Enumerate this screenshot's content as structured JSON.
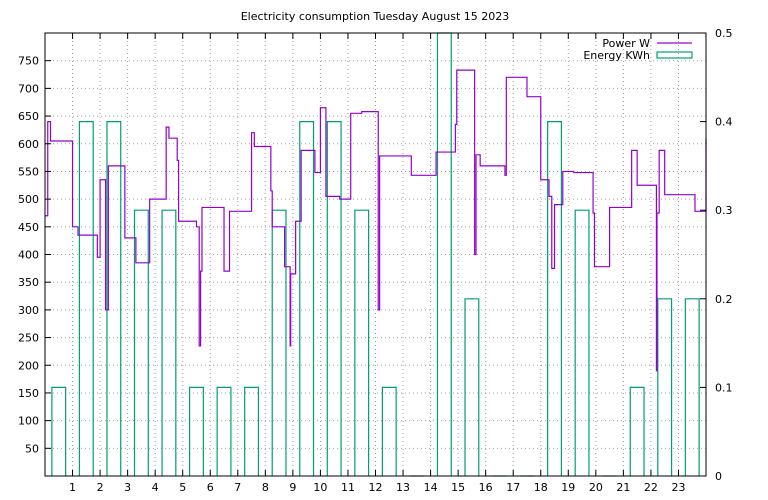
{
  "chart_data": {
    "type": "line",
    "title": "Electricity consumption Tuesday August 15 2023",
    "xlabel": "",
    "ylabel": "",
    "y2label": "",
    "xlim": [
      0,
      24
    ],
    "ylim": [
      0,
      800
    ],
    "y2lim": [
      0,
      0.5
    ],
    "grid": true,
    "legend_position": "top-right",
    "x_ticks": [
      1,
      2,
      3,
      4,
      5,
      6,
      7,
      8,
      9,
      10,
      11,
      12,
      13,
      14,
      15,
      16,
      17,
      18,
      19,
      20,
      21,
      22,
      23
    ],
    "y_ticks": [
      50,
      100,
      150,
      200,
      250,
      300,
      350,
      400,
      450,
      500,
      550,
      600,
      650,
      700,
      750
    ],
    "y2_ticks": [
      0,
      0.1,
      0.2,
      0.3,
      0.4,
      0.5
    ],
    "series": [
      {
        "name": "Power W",
        "color": "#9400d3",
        "axis": "y",
        "style": "step",
        "points": [
          [
            0.0,
            470
          ],
          [
            0.1,
            470
          ],
          [
            0.1,
            640
          ],
          [
            0.2,
            640
          ],
          [
            0.2,
            605
          ],
          [
            1.0,
            605
          ],
          [
            1.0,
            450
          ],
          [
            1.2,
            450
          ],
          [
            1.2,
            435
          ],
          [
            1.9,
            435
          ],
          [
            1.9,
            395
          ],
          [
            2.0,
            395
          ],
          [
            2.0,
            535
          ],
          [
            2.2,
            535
          ],
          [
            2.2,
            300
          ],
          [
            2.3,
            300
          ],
          [
            2.3,
            560
          ],
          [
            2.9,
            560
          ],
          [
            2.9,
            430
          ],
          [
            3.3,
            430
          ],
          [
            3.3,
            385
          ],
          [
            3.8,
            385
          ],
          [
            3.8,
            500
          ],
          [
            4.4,
            500
          ],
          [
            4.4,
            630
          ],
          [
            4.5,
            630
          ],
          [
            4.5,
            610
          ],
          [
            4.8,
            610
          ],
          [
            4.8,
            570
          ],
          [
            4.85,
            570
          ],
          [
            4.85,
            460
          ],
          [
            5.5,
            460
          ],
          [
            5.5,
            450
          ],
          [
            5.6,
            450
          ],
          [
            5.6,
            235
          ],
          [
            5.65,
            235
          ],
          [
            5.65,
            370
          ],
          [
            5.7,
            370
          ],
          [
            5.7,
            485
          ],
          [
            6.5,
            485
          ],
          [
            6.5,
            370
          ],
          [
            6.7,
            370
          ],
          [
            6.7,
            478
          ],
          [
            7.5,
            478
          ],
          [
            7.5,
            620
          ],
          [
            7.6,
            620
          ],
          [
            7.6,
            595
          ],
          [
            8.2,
            595
          ],
          [
            8.2,
            515
          ],
          [
            8.25,
            515
          ],
          [
            8.25,
            450
          ],
          [
            8.7,
            450
          ],
          [
            8.7,
            378
          ],
          [
            8.9,
            378
          ],
          [
            8.9,
            235
          ],
          [
            8.92,
            235
          ],
          [
            8.92,
            365
          ],
          [
            9.1,
            365
          ],
          [
            9.1,
            460
          ],
          [
            9.3,
            460
          ],
          [
            9.3,
            588
          ],
          [
            9.8,
            588
          ],
          [
            9.8,
            548
          ],
          [
            10.0,
            548
          ],
          [
            10.0,
            665
          ],
          [
            10.2,
            665
          ],
          [
            10.2,
            505
          ],
          [
            10.7,
            505
          ],
          [
            10.7,
            500
          ],
          [
            11.1,
            500
          ],
          [
            11.1,
            655
          ],
          [
            11.5,
            655
          ],
          [
            11.5,
            658
          ],
          [
            12.1,
            658
          ],
          [
            12.1,
            300
          ],
          [
            12.15,
            300
          ],
          [
            12.15,
            578
          ],
          [
            13.3,
            578
          ],
          [
            13.3,
            543
          ],
          [
            14.2,
            543
          ],
          [
            14.2,
            585
          ],
          [
            14.9,
            585
          ],
          [
            14.9,
            635
          ],
          [
            14.95,
            635
          ],
          [
            14.95,
            733
          ],
          [
            15.6,
            733
          ],
          [
            15.6,
            400
          ],
          [
            15.65,
            400
          ],
          [
            15.65,
            580
          ],
          [
            15.8,
            580
          ],
          [
            15.8,
            560
          ],
          [
            16.7,
            560
          ],
          [
            16.7,
            543
          ],
          [
            16.75,
            543
          ],
          [
            16.75,
            720
          ],
          [
            17.5,
            720
          ],
          [
            17.5,
            685
          ],
          [
            18.0,
            685
          ],
          [
            18.0,
            535
          ],
          [
            18.3,
            535
          ],
          [
            18.3,
            505
          ],
          [
            18.4,
            505
          ],
          [
            18.4,
            375
          ],
          [
            18.5,
            375
          ],
          [
            18.5,
            490
          ],
          [
            18.8,
            490
          ],
          [
            18.8,
            550
          ],
          [
            19.2,
            550
          ],
          [
            19.2,
            548
          ],
          [
            19.9,
            548
          ],
          [
            19.9,
            475
          ],
          [
            19.95,
            475
          ],
          [
            19.95,
            378
          ],
          [
            20.5,
            378
          ],
          [
            20.5,
            485
          ],
          [
            21.3,
            485
          ],
          [
            21.3,
            588
          ],
          [
            21.5,
            588
          ],
          [
            21.5,
            525
          ],
          [
            22.2,
            525
          ],
          [
            22.2,
            190
          ],
          [
            22.22,
            190
          ],
          [
            22.22,
            475
          ],
          [
            22.3,
            475
          ],
          [
            22.3,
            588
          ],
          [
            22.5,
            588
          ],
          [
            22.5,
            508
          ],
          [
            23.6,
            508
          ],
          [
            23.6,
            478
          ],
          [
            24.0,
            478
          ],
          [
            24.0,
            610
          ]
        ]
      },
      {
        "name": "Energy KWh",
        "color": "#009e73",
        "axis": "y2",
        "style": "boxes",
        "values": [
          0.1,
          0.4,
          0.4,
          0.3,
          0.3,
          0.1,
          0.1,
          0.1,
          0.3,
          0.4,
          0.4,
          0.3,
          0.1,
          0.0,
          0.5,
          0.2,
          0.0,
          0.0,
          0.4,
          0.3,
          0.0,
          0.1,
          0.2,
          0.2
        ]
      }
    ]
  }
}
